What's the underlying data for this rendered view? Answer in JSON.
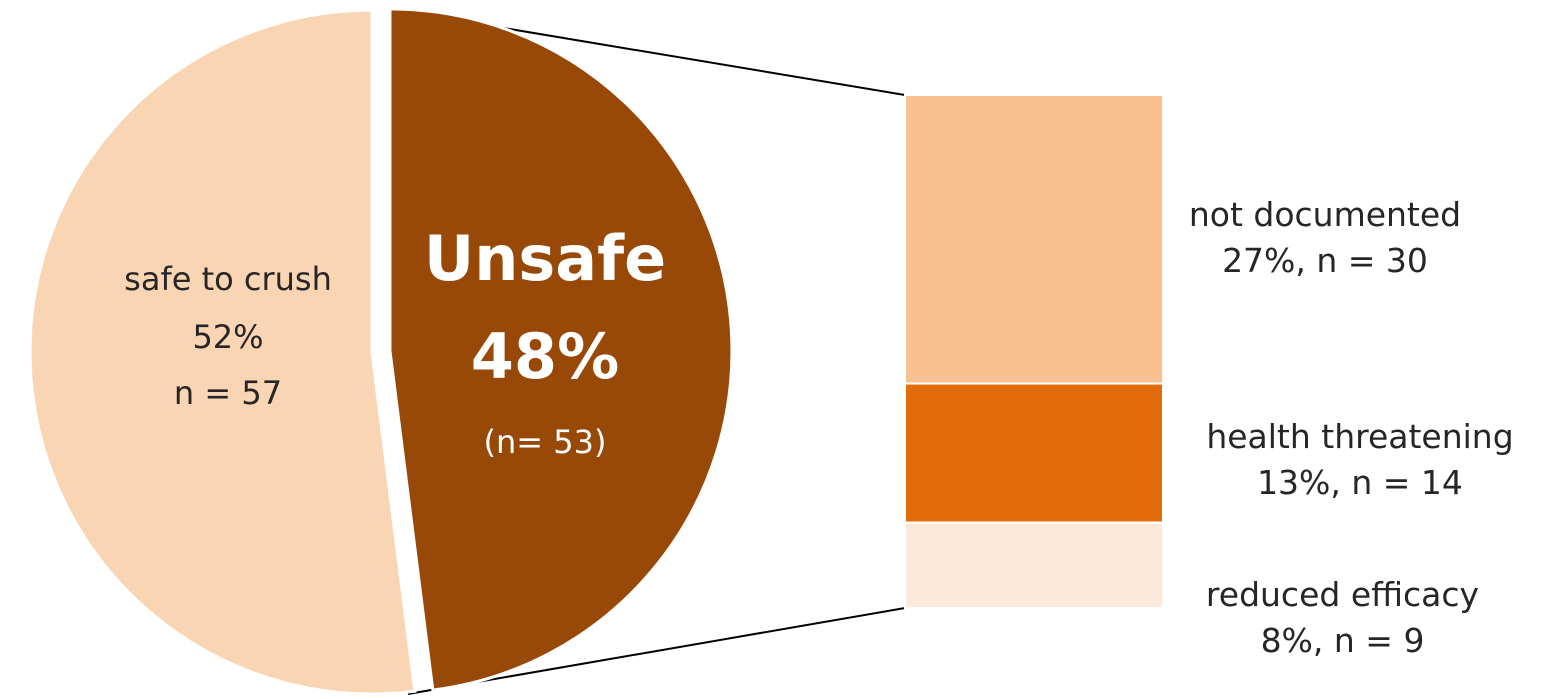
{
  "chart_data": {
    "type": "pie",
    "slices": [
      {
        "label": "safe to crush",
        "percent": 52,
        "n_text": "n = 57",
        "percent_text": "52%",
        "color": "#fad5b4"
      },
      {
        "label": "Unsafe",
        "percent": 48,
        "n_text": "(n= 53)",
        "percent_text": "48%",
        "color": "#984807"
      }
    ],
    "breakdown_of": "Unsafe",
    "breakdown": [
      {
        "label": "not documented",
        "percent": 27,
        "n": 30,
        "value_text": "27%, n = 30",
        "color": "#f9c191"
      },
      {
        "label": "health threatening",
        "percent": 13,
        "n": 14,
        "value_text": "13%, n = 14",
        "color": "#e36c0a"
      },
      {
        "label": "reduced efficacy",
        "percent": 8,
        "n": 9,
        "value_text": "8%, n = 9",
        "color": "#fde9d9"
      }
    ]
  }
}
